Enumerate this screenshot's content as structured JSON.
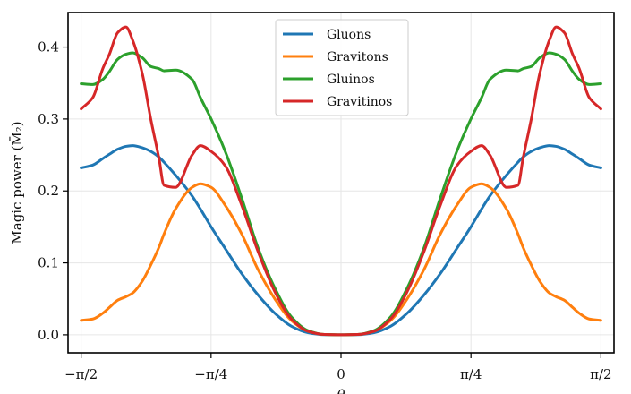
{
  "chart_data": {
    "type": "line",
    "title": "",
    "xlabel": "θ",
    "ylabel": "Magic power (M̄₂)",
    "xlim": [
      -1.65,
      1.65
    ],
    "ylim": [
      -0.025,
      0.448
    ],
    "grid": true,
    "legend_position": "top-center",
    "x_ticks": [
      {
        "value": -1.5708,
        "label": "−π/2"
      },
      {
        "value": -0.7854,
        "label": "−π/4"
      },
      {
        "value": 0,
        "label": "0"
      },
      {
        "value": 0.7854,
        "label": "π/4"
      },
      {
        "value": 1.5708,
        "label": "π/2"
      }
    ],
    "y_ticks": [
      {
        "value": 0.0,
        "label": "0.0"
      },
      {
        "value": 0.1,
        "label": "0.1"
      },
      {
        "value": 0.2,
        "label": "0.2"
      },
      {
        "value": 0.3,
        "label": "0.3"
      },
      {
        "value": 0.4,
        "label": "0.4"
      }
    ],
    "x_symmetric": true,
    "x_half": [
      0,
      0.1,
      0.2,
      0.3,
      0.4,
      0.5,
      0.6,
      0.7,
      0.785,
      0.85,
      0.9,
      1.0,
      1.07,
      1.1,
      1.15,
      1.2,
      1.26,
      1.3,
      1.35,
      1.4,
      1.44,
      1.5,
      1.5708
    ],
    "series": [
      {
        "name": "Gluons",
        "color": "#1f77b4",
        "values": [
          0,
          0.0002,
          0.003,
          0.012,
          0.03,
          0.055,
          0.085,
          0.12,
          0.15,
          0.175,
          0.193,
          0.222,
          0.24,
          0.247,
          0.255,
          0.26,
          0.263,
          0.262,
          0.258,
          0.251,
          0.245,
          0.236,
          0.232
        ]
      },
      {
        "name": "Gravitons",
        "color": "#ff7f0e",
        "values": [
          0,
          0.0005,
          0.005,
          0.02,
          0.05,
          0.09,
          0.14,
          0.18,
          0.205,
          0.21,
          0.205,
          0.175,
          0.14,
          0.122,
          0.097,
          0.075,
          0.058,
          0.053,
          0.048,
          0.038,
          0.03,
          0.022,
          0.02
        ]
      },
      {
        "name": "Gluinos",
        "color": "#2ca02c",
        "values": [
          0,
          0.0005,
          0.006,
          0.025,
          0.065,
          0.12,
          0.19,
          0.255,
          0.3,
          0.33,
          0.355,
          0.368,
          0.367,
          0.37,
          0.373,
          0.385,
          0.392,
          0.39,
          0.383,
          0.366,
          0.355,
          0.348,
          0.349
        ]
      },
      {
        "name": "Gravitinos",
        "color": "#d62728",
        "values": [
          0,
          0.0005,
          0.005,
          0.022,
          0.06,
          0.115,
          0.18,
          0.235,
          0.255,
          0.263,
          0.25,
          0.205,
          0.208,
          0.245,
          0.3,
          0.362,
          0.41,
          0.428,
          0.42,
          0.39,
          0.37,
          0.33,
          0.314
        ]
      }
    ]
  }
}
